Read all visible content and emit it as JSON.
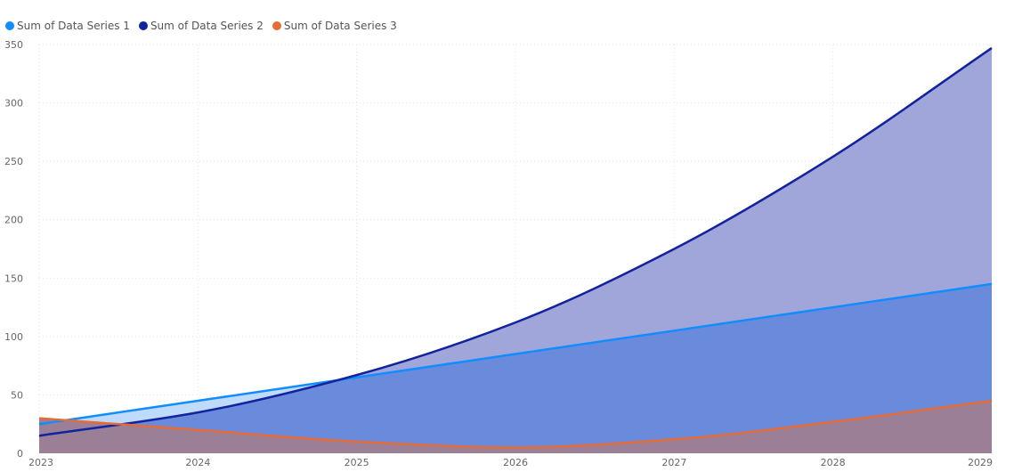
{
  "chart_data": {
    "type": "area",
    "x": [
      "2023",
      "2024",
      "2025",
      "2026",
      "2027",
      "2028",
      "2029"
    ],
    "series": [
      {
        "name": "Sum of  Data Series 1",
        "values": [
          25,
          45,
          65,
          85,
          105,
          125,
          145
        ],
        "color": "#118DFF",
        "fill": "#A9CFFB"
      },
      {
        "name": "Sum of  Data Series 2",
        "values": [
          15,
          35,
          67,
          112,
          175,
          254,
          347
        ],
        "color": "#12239E",
        "fill": "#A0A6D9"
      },
      {
        "name": "Sum of  Data Series 3",
        "values": [
          30,
          20,
          10,
          5,
          12,
          27,
          45
        ],
        "color": "#E66C37",
        "fill": "#9A7F96"
      }
    ],
    "y_ticks": [
      0,
      50,
      100,
      150,
      200,
      250,
      300,
      350
    ],
    "ylim": [
      0,
      350
    ],
    "grid": true,
    "legend": "top-left"
  }
}
